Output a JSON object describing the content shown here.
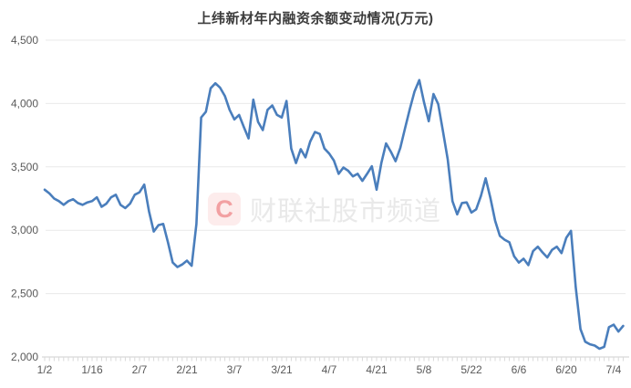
{
  "chart_data": {
    "type": "line",
    "title": "上纬新材年内融资余额变动情况(万元)",
    "xlabel": "",
    "ylabel": "",
    "x_tick_labels": [
      "1/2",
      "1/16",
      "2/7",
      "2/21",
      "3/7",
      "3/21",
      "4/7",
      "4/21",
      "5/8",
      "5/22",
      "6/6",
      "6/20",
      "7/4"
    ],
    "x_label_every": 10,
    "y_tick_labels": [
      "2,000",
      "2,500",
      "3,000",
      "3,500",
      "4,000",
      "4,500"
    ],
    "ylim": [
      2000,
      4500
    ],
    "y_tick_step": 500,
    "grid": true,
    "legend": false,
    "line_color": "#4a7ebc",
    "values": [
      3320,
      3290,
      3250,
      3230,
      3200,
      3230,
      3245,
      3215,
      3200,
      3220,
      3230,
      3260,
      3185,
      3210,
      3260,
      3280,
      3200,
      3175,
      3210,
      3280,
      3300,
      3360,
      3150,
      2990,
      3040,
      3050,
      2905,
      2745,
      2710,
      2730,
      2760,
      2720,
      3050,
      3890,
      3935,
      4120,
      4160,
      4125,
      4060,
      3950,
      3875,
      3910,
      3815,
      3725,
      4030,
      3855,
      3790,
      3950,
      3985,
      3910,
      3890,
      4020,
      3645,
      3530,
      3640,
      3575,
      3700,
      3775,
      3760,
      3645,
      3605,
      3550,
      3445,
      3495,
      3470,
      3425,
      3445,
      3390,
      3445,
      3505,
      3320,
      3530,
      3685,
      3620,
      3545,
      3650,
      3805,
      3955,
      4095,
      4185,
      4010,
      3860,
      4075,
      3995,
      3780,
      3560,
      3230,
      3125,
      3215,
      3220,
      3140,
      3165,
      3270,
      3410,
      3255,
      3075,
      2955,
      2925,
      2905,
      2795,
      2745,
      2775,
      2725,
      2835,
      2870,
      2825,
      2785,
      2845,
      2870,
      2820,
      2940,
      2995,
      2550,
      2220,
      2120,
      2100,
      2090,
      2065,
      2080,
      2235,
      2255,
      2200,
      2245
    ]
  },
  "watermark": {
    "logo_letter": "C",
    "text": "财联社股市频道",
    "logo_color": "#f2a0a2",
    "logo_bg": "#fdecec",
    "text_color": "#e9e9e9"
  },
  "colors": {
    "background": "#ffffff",
    "title_text": "#3c3c3c",
    "axis_text": "#595959",
    "gridline": "#e9e9e9",
    "axis_line": "#cfcfcf",
    "tick": "#d9d9d9"
  }
}
